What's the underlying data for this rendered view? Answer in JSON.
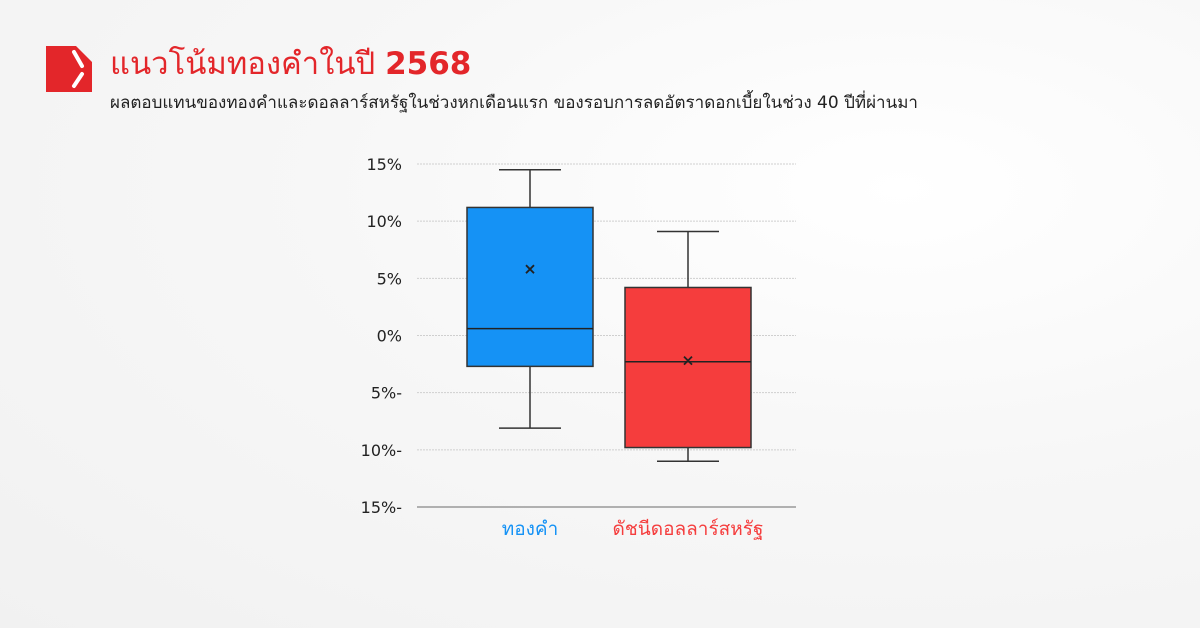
{
  "header": {
    "title": "แนวโน้มทองคำในปี",
    "title_year": "2568",
    "subtitle": "ผลตอบแทนของทองคำและดอลลาร์สหรัฐในช่วงหกเดือนแรก ของรอบการลดอัตราดอกเบี้ยในช่วง 40 ปีที่ผ่านมา"
  },
  "colors": {
    "brand": "#e3262a",
    "gold": "#1592f5",
    "usd": "#f53d3d"
  },
  "chart_data": {
    "type": "box",
    "ylim": [
      -15,
      15
    ],
    "yticks": [
      15,
      10,
      5,
      0,
      -5,
      -10,
      -15
    ],
    "ytick_labels": [
      "15%",
      "10%",
      "5%",
      "0%",
      "5%-",
      "10%-",
      "15%-"
    ],
    "grid": true,
    "categories": [
      "ทองคำ",
      "ดัชนีดอลลาร์สหรัฐ"
    ],
    "series": [
      {
        "name": "ทองคำ",
        "color": "#1592f5",
        "min": -8.1,
        "q1": -2.7,
        "median": 0.6,
        "q3": 11.2,
        "max": 14.5,
        "mean": 5.8
      },
      {
        "name": "ดัชนีดอลลาร์สหรัฐ",
        "color": "#f53d3d",
        "min": -11.0,
        "q1": -9.8,
        "median": -2.3,
        "q3": 4.2,
        "max": 9.1,
        "mean": -2.2
      }
    ]
  }
}
